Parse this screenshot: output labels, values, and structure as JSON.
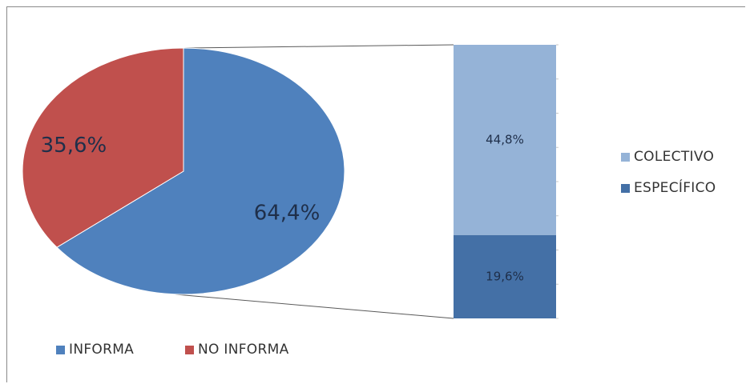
{
  "chart_data": {
    "type": "pie",
    "subtype": "bar-of-pie",
    "pie": {
      "slices": [
        {
          "label": "INFORMA",
          "value": 64.4,
          "value_label": "64,4%",
          "color": "#4F81BD"
        },
        {
          "label": "NO INFORMA",
          "value": 35.6,
          "value_label": "35,6%",
          "color": "#C0504D"
        }
      ]
    },
    "bar": {
      "parent_slice": "INFORMA",
      "segments": [
        {
          "label": "COLECTIVO",
          "value": 44.8,
          "value_label": "44,8%",
          "color": "#95B3D7"
        },
        {
          "label": "ESPECÍFICO",
          "value": 19.6,
          "value_label": "19,6%",
          "color": "#4470A6"
        }
      ]
    },
    "legend_bottom": [
      "INFORMA",
      "NO INFORMA"
    ],
    "legend_right": [
      "COLECTIVO",
      "ESPECÍFICO"
    ]
  }
}
